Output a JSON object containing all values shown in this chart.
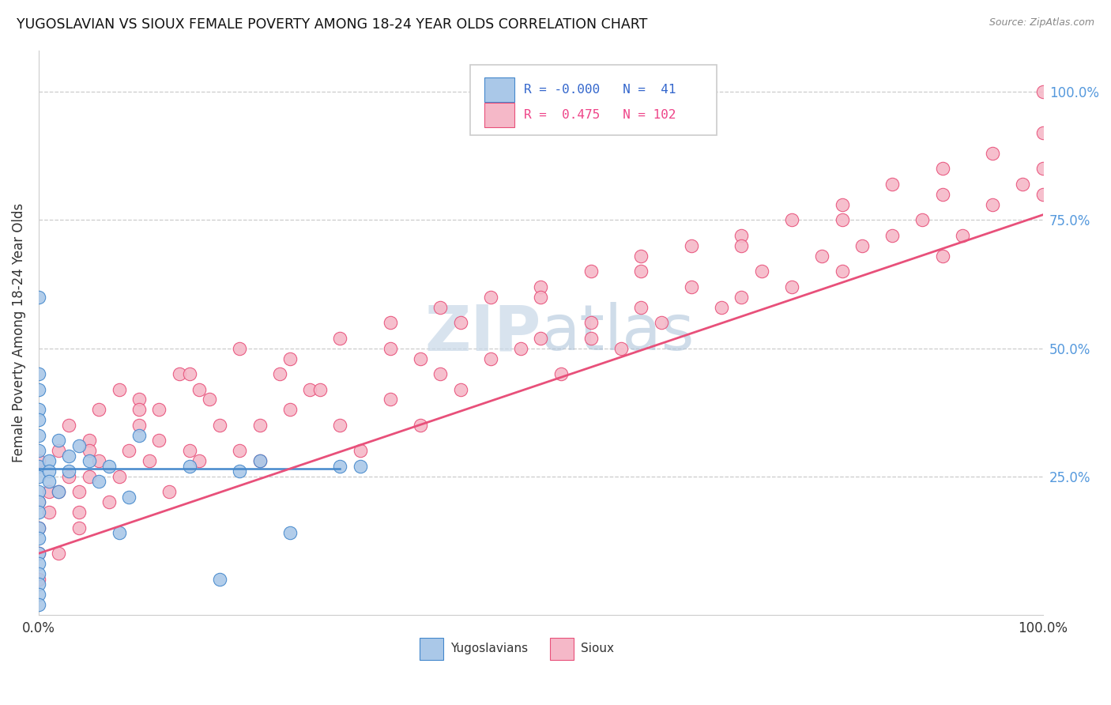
{
  "title": "YUGOSLAVIAN VS SIOUX FEMALE POVERTY AMONG 18-24 YEAR OLDS CORRELATION CHART",
  "source": "Source: ZipAtlas.com",
  "ylabel": "Female Poverty Among 18-24 Year Olds",
  "xlim": [
    0,
    1
  ],
  "ylim": [
    -0.02,
    1.08
  ],
  "ytick_labels": [
    "25.0%",
    "50.0%",
    "75.0%",
    "100.0%"
  ],
  "ytick_positions": [
    0.25,
    0.5,
    0.75,
    1.0
  ],
  "blue_color": "#aac8e8",
  "pink_color": "#f5b8c8",
  "line_blue_color": "#4488cc",
  "line_pink_color": "#e8507a",
  "watermark_color": "#c8d8e8",
  "background_color": "#ffffff",
  "grid_color": "#cccccc",
  "right_tick_color": "#5599dd",
  "yugo_x": [
    0.0,
    0.0,
    0.0,
    0.0,
    0.0,
    0.0,
    0.0,
    0.0,
    0.0,
    0.0,
    0.0,
    0.0,
    0.0,
    0.0,
    0.0,
    0.0,
    0.0,
    0.0,
    0.0,
    0.0,
    0.01,
    0.01,
    0.01,
    0.02,
    0.02,
    0.03,
    0.03,
    0.04,
    0.05,
    0.06,
    0.07,
    0.08,
    0.09,
    0.1,
    0.15,
    0.18,
    0.2,
    0.22,
    0.25,
    0.3,
    0.32
  ],
  "yugo_y": [
    0.6,
    0.45,
    0.42,
    0.38,
    0.36,
    0.33,
    0.3,
    0.27,
    0.25,
    0.22,
    0.2,
    0.18,
    0.15,
    0.13,
    0.1,
    0.08,
    0.06,
    0.04,
    0.02,
    0.0,
    0.28,
    0.26,
    0.24,
    0.32,
    0.22,
    0.29,
    0.26,
    0.31,
    0.28,
    0.24,
    0.27,
    0.14,
    0.21,
    0.33,
    0.27,
    0.05,
    0.26,
    0.28,
    0.14,
    0.27,
    0.27
  ],
  "sioux_x": [
    0.0,
    0.0,
    0.0,
    0.0,
    0.0,
    0.01,
    0.01,
    0.02,
    0.02,
    0.03,
    0.04,
    0.04,
    0.05,
    0.06,
    0.07,
    0.08,
    0.09,
    0.1,
    0.11,
    0.12,
    0.13,
    0.15,
    0.16,
    0.17,
    0.18,
    0.2,
    0.22,
    0.24,
    0.25,
    0.27,
    0.3,
    0.32,
    0.35,
    0.38,
    0.4,
    0.42,
    0.45,
    0.48,
    0.5,
    0.52,
    0.55,
    0.58,
    0.6,
    0.62,
    0.65,
    0.68,
    0.7,
    0.72,
    0.75,
    0.78,
    0.8,
    0.82,
    0.85,
    0.88,
    0.9,
    0.92,
    0.95,
    0.98,
    1.0,
    1.0,
    0.02,
    0.03,
    0.04,
    0.05,
    0.06,
    0.08,
    0.1,
    0.12,
    0.14,
    0.16,
    0.2,
    0.25,
    0.3,
    0.35,
    0.4,
    0.45,
    0.5,
    0.55,
    0.6,
    0.65,
    0.7,
    0.75,
    0.8,
    0.85,
    0.9,
    0.95,
    1.0,
    0.05,
    0.1,
    0.15,
    0.22,
    0.28,
    0.35,
    0.42,
    0.5,
    0.6,
    0.7,
    0.8,
    0.9,
    1.0,
    0.38,
    0.55
  ],
  "sioux_y": [
    0.28,
    0.2,
    0.15,
    0.1,
    0.05,
    0.22,
    0.18,
    0.3,
    0.1,
    0.25,
    0.15,
    0.22,
    0.32,
    0.28,
    0.2,
    0.25,
    0.3,
    0.35,
    0.28,
    0.32,
    0.22,
    0.3,
    0.28,
    0.4,
    0.35,
    0.3,
    0.28,
    0.45,
    0.38,
    0.42,
    0.35,
    0.3,
    0.4,
    0.35,
    0.45,
    0.42,
    0.48,
    0.5,
    0.52,
    0.45,
    0.55,
    0.5,
    0.58,
    0.55,
    0.62,
    0.58,
    0.6,
    0.65,
    0.62,
    0.68,
    0.65,
    0.7,
    0.72,
    0.75,
    0.68,
    0.72,
    0.78,
    0.82,
    0.8,
    0.85,
    0.22,
    0.35,
    0.18,
    0.25,
    0.38,
    0.42,
    0.4,
    0.38,
    0.45,
    0.42,
    0.5,
    0.48,
    0.52,
    0.55,
    0.58,
    0.6,
    0.62,
    0.65,
    0.68,
    0.7,
    0.72,
    0.75,
    0.78,
    0.82,
    0.85,
    0.88,
    0.92,
    0.3,
    0.38,
    0.45,
    0.35,
    0.42,
    0.5,
    0.55,
    0.6,
    0.65,
    0.7,
    0.75,
    0.8,
    1.0,
    0.48,
    0.52
  ],
  "pink_line_x0": 0.0,
  "pink_line_y0": 0.1,
  "pink_line_x1": 1.0,
  "pink_line_y1": 0.76,
  "blue_line_y": 0.265,
  "legend_text1": "R = -0.000   N =  41",
  "legend_text2": "R =  0.475   N = 102"
}
